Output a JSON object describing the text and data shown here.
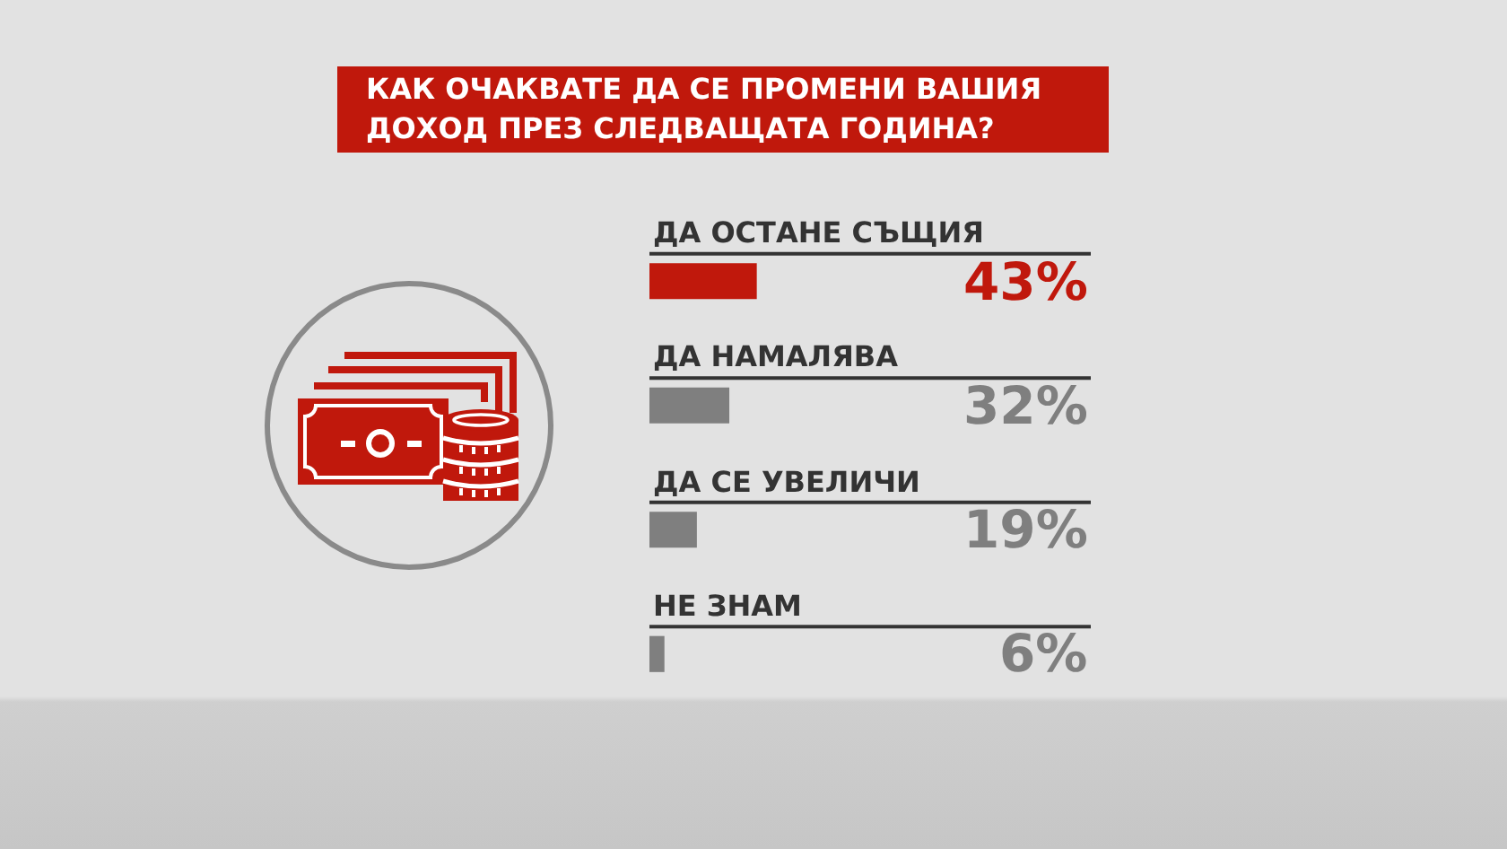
{
  "chart_data": {
    "type": "bar",
    "orientation": "horizontal",
    "title": "КАК ОЧАКВАТЕ ДА СЕ ПРОМЕНИ ВАШИЯ ДОХОД ПРЕЗ СЛЕДВАЩАТА ГОДИНА?",
    "categories": [
      "ДА ОСТАНЕ СЪЩИЯ",
      "ДА НАМАЛЯВА",
      "ДА СЕ УВЕЛИЧИ",
      "НЕ ЗНАМ"
    ],
    "values": [
      43,
      32,
      19,
      6
    ],
    "colors": [
      "#c0180c",
      "#7f7f7f",
      "#7f7f7f",
      "#7f7f7f"
    ],
    "value_labels": [
      "43%",
      "32%",
      "19%",
      "6%"
    ]
  }
}
